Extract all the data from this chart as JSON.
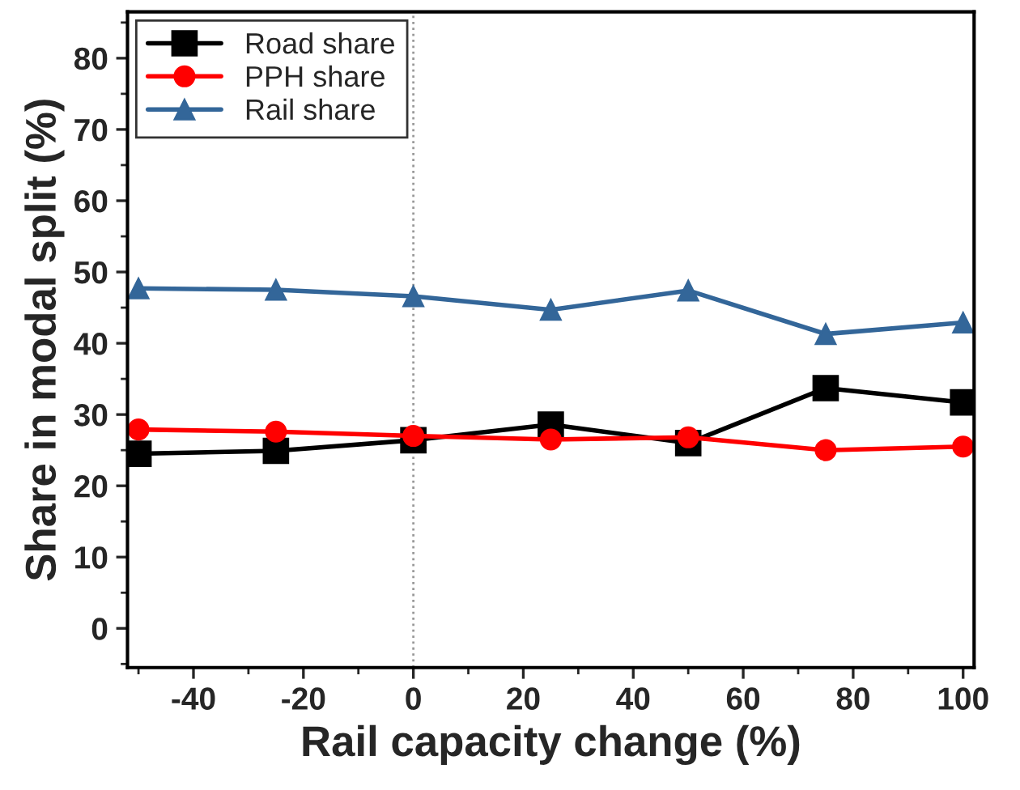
{
  "chart_data": {
    "type": "line",
    "xlabel": "Rail capacity change (%)",
    "ylabel": "Share in modal split (%)",
    "x": [
      -50,
      -25,
      0,
      25,
      50,
      75,
      100
    ],
    "series": [
      {
        "name": "Road share",
        "color": "#000000",
        "marker": "square",
        "values": [
          24.5,
          24.9,
          26.4,
          28.6,
          26.0,
          33.7,
          31.7
        ]
      },
      {
        "name": "PPH share",
        "color": "#ff0000",
        "marker": "circle",
        "values": [
          27.9,
          27.6,
          27.0,
          26.5,
          26.8,
          25.0,
          25.5
        ]
      },
      {
        "name": "Rail share",
        "color": "#336699",
        "marker": "triangle",
        "values": [
          47.7,
          47.5,
          46.6,
          44.7,
          47.4,
          41.3,
          42.9
        ]
      }
    ],
    "xlim": [
      -52,
      102
    ],
    "xticks": [
      -40,
      -20,
      0,
      20,
      40,
      60,
      80,
      100
    ],
    "ylim": [
      -5.5,
      86.5
    ],
    "yticks": [
      0,
      10,
      20,
      30,
      40,
      50,
      60,
      70,
      80
    ],
    "ref_lines": [
      {
        "axis": "x",
        "value": 0,
        "color": "#999999",
        "line_style": "dotted"
      }
    ],
    "grid": false,
    "legend": "top left"
  }
}
